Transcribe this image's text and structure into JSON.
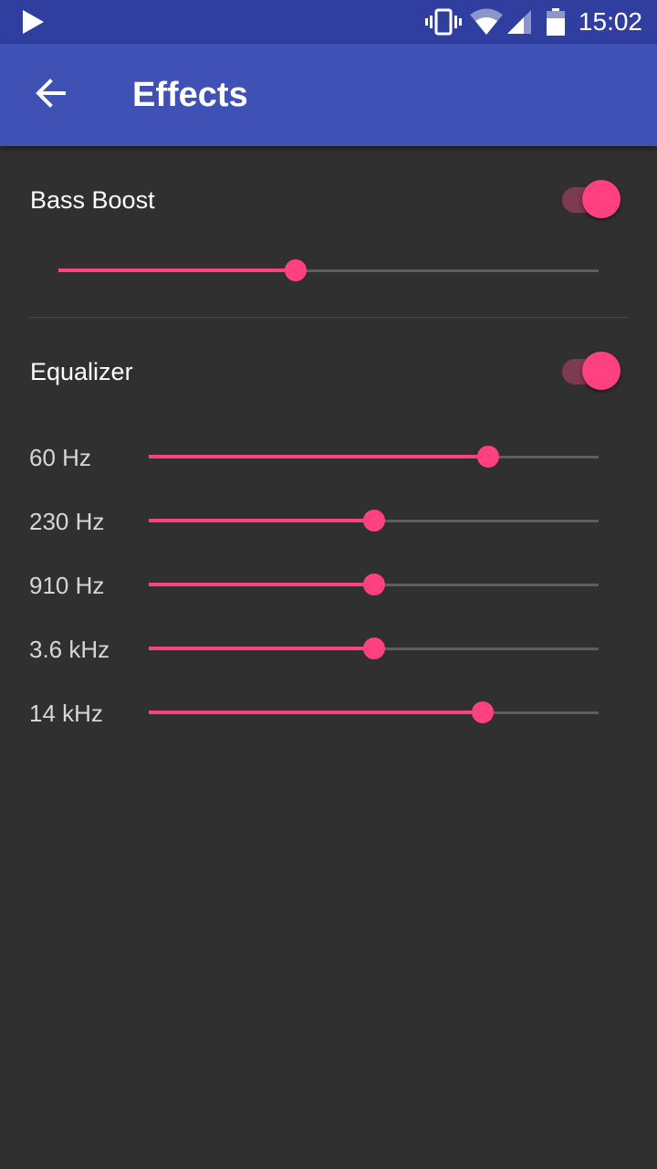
{
  "status_bar": {
    "time": "15:02",
    "icons": [
      "play-icon",
      "vibrate-icon",
      "wifi-icon",
      "signal-icon",
      "battery-icon"
    ]
  },
  "app_bar": {
    "title": "Effects",
    "back_icon": "arrow-back-icon"
  },
  "bass_boost": {
    "label": "Bass Boost",
    "enabled": true,
    "level": 0.44
  },
  "equalizer": {
    "label": "Equalizer",
    "enabled": true,
    "bands": [
      {
        "label": "60 Hz",
        "level": 0.755
      },
      {
        "label": "230 Hz",
        "level": 0.5
      },
      {
        "label": "910 Hz",
        "level": 0.5
      },
      {
        "label": "3.6 kHz",
        "level": 0.5
      },
      {
        "label": "14 kHz",
        "level": 0.743
      }
    ]
  },
  "colors": {
    "accent": "#ff4081",
    "primary": "#3f51b5",
    "primary_dark": "#303f9f",
    "background": "#303030"
  }
}
